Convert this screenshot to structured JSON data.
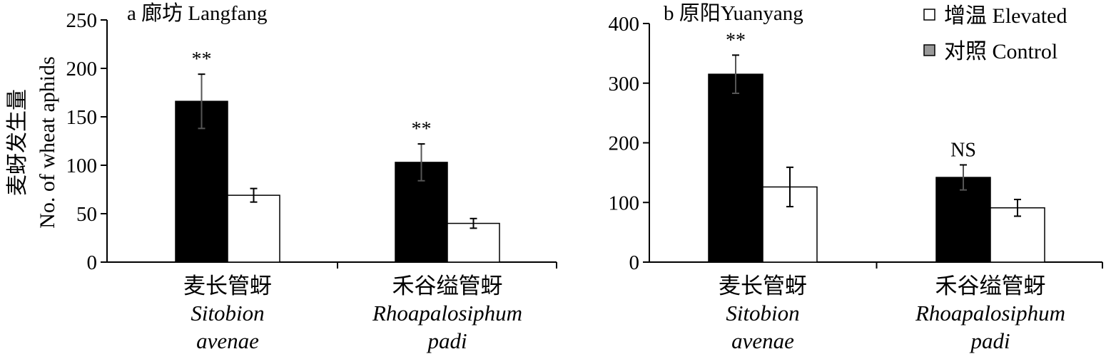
{
  "legend": [
    {
      "label": "增温 Elevated",
      "fill": "#ffffff"
    },
    {
      "label": "对照 Control",
      "fill": "#999999"
    }
  ],
  "colors": {
    "black_bar": "#000000",
    "white_bar": "#ffffff"
  },
  "chart_data": [
    {
      "type": "bar",
      "panel": "a",
      "title": "廊坊 Langfang",
      "ylabel_cn": "麦蚜发生量",
      "ylabel_en": "No. of wheat aphids",
      "ylim": [
        0,
        250
      ],
      "yticks": [
        0,
        50,
        100,
        150,
        200,
        250
      ],
      "categories": [
        {
          "cn": "麦长管蚜",
          "sp1": "Sitobion",
          "sp2": "avenae"
        },
        {
          "cn": "禾谷缢管蚜",
          "sp1": "Rhoapalosiphum",
          "sp2": "padi"
        }
      ],
      "series": [
        {
          "fill": "#000000",
          "values": [
            166,
            103
          ],
          "errors": [
            28,
            19
          ]
        },
        {
          "fill": "#ffffff",
          "values": [
            69,
            40
          ],
          "errors": [
            7,
            5
          ]
        }
      ],
      "significance": [
        "**",
        "**"
      ]
    },
    {
      "type": "bar",
      "panel": "b",
      "title": "原阳Yuanyang",
      "ylim": [
        0,
        400
      ],
      "yticks": [
        0,
        100,
        200,
        300,
        400
      ],
      "categories": [
        {
          "cn": "麦长管蚜",
          "sp1": "Sitobion",
          "sp2": "avenae"
        },
        {
          "cn": "禾谷缢管蚜",
          "sp1": "Rhoapalosiphum",
          "sp2": "padi"
        }
      ],
      "series": [
        {
          "fill": "#000000",
          "values": [
            315,
            142
          ],
          "errors": [
            32,
            21
          ]
        },
        {
          "fill": "#ffffff",
          "values": [
            126,
            91
          ],
          "errors": [
            33,
            14
          ]
        }
      ],
      "significance": [
        "**",
        "NS"
      ]
    }
  ]
}
